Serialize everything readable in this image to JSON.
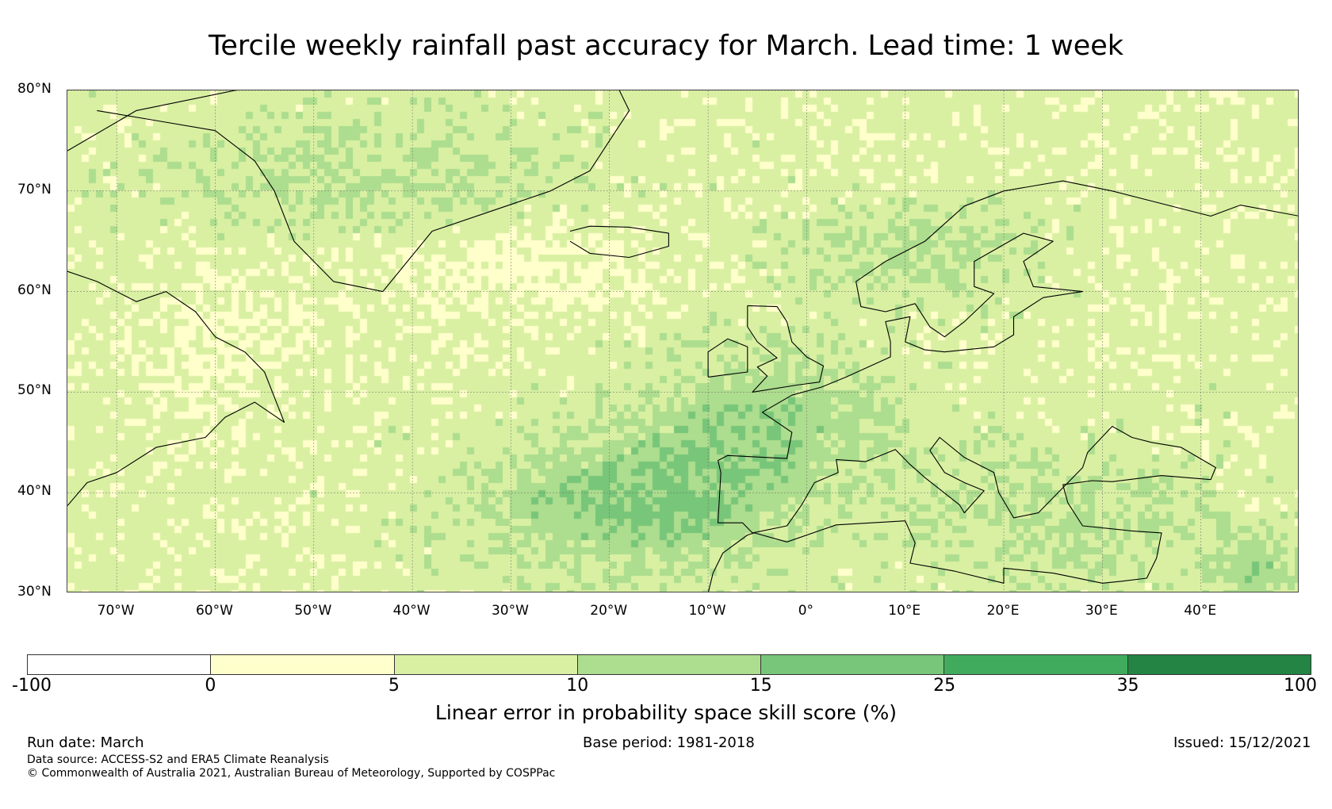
{
  "title": "Tercile weekly rainfall past accuracy for March. Lead time: 1 week",
  "map": {
    "lat_range": [
      30,
      80
    ],
    "lon_range": [
      -75,
      50
    ],
    "lat_ticks": [
      {
        "value": 80,
        "label": "80°N"
      },
      {
        "value": 70,
        "label": "70°N"
      },
      {
        "value": 60,
        "label": "60°N"
      },
      {
        "value": 50,
        "label": "50°N"
      },
      {
        "value": 40,
        "label": "40°N"
      },
      {
        "value": 30,
        "label": "30°N"
      }
    ],
    "lon_ticks": [
      {
        "value": -70,
        "label": "70°W"
      },
      {
        "value": -60,
        "label": "60°W"
      },
      {
        "value": -50,
        "label": "50°W"
      },
      {
        "value": -40,
        "label": "40°W"
      },
      {
        "value": -30,
        "label": "30°W"
      },
      {
        "value": -20,
        "label": "20°W"
      },
      {
        "value": -10,
        "label": "10°W"
      },
      {
        "value": 0,
        "label": "0°"
      },
      {
        "value": 10,
        "label": "10°E"
      },
      {
        "value": 20,
        "label": "20°E"
      },
      {
        "value": 30,
        "label": "30°E"
      },
      {
        "value": 40,
        "label": "40°E"
      }
    ]
  },
  "colorbar": {
    "bounds": [
      "-100",
      "0",
      "5",
      "10",
      "15",
      "25",
      "35",
      "100"
    ],
    "colors": [
      "#ffffff",
      "#ffffcc",
      "#d9f0a3",
      "#addd8e",
      "#78c679",
      "#41ab5d",
      "#238443"
    ],
    "label": "Linear error in probability space skill score (%)"
  },
  "footer": {
    "run_date": "Run date: March",
    "base_period": "Base period: 1981-2018",
    "issued": "Issued: 15/12/2021",
    "data_source": "Data source: ACCESS-S2 and ERA5 Climate Reanalysis",
    "copyright": "© Commonwealth of Australia 2021, Australian Bureau of Meteorology, Supported by COSPPac"
  }
}
